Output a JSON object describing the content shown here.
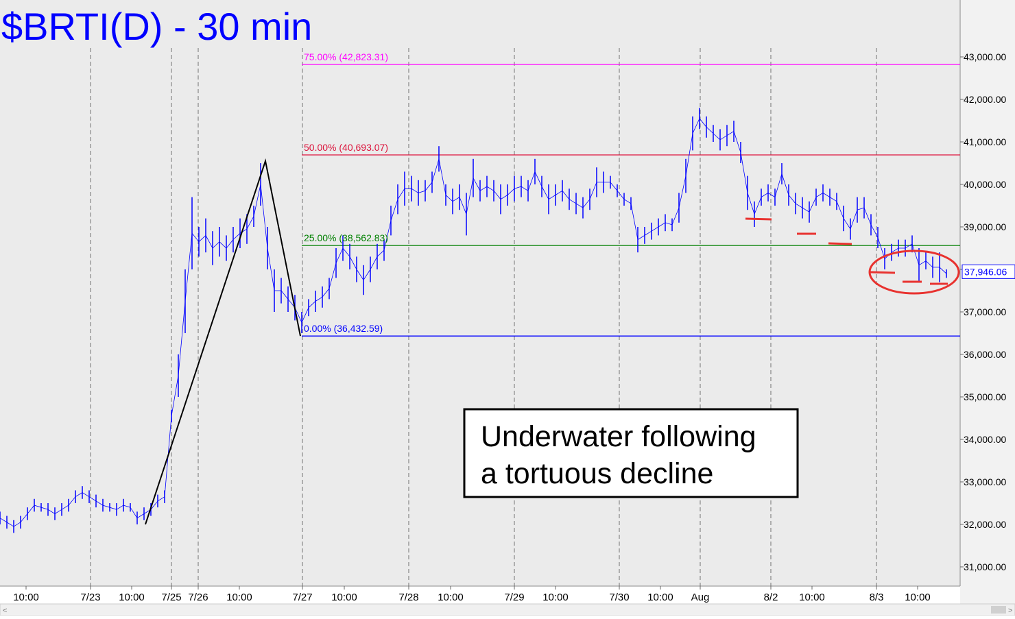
{
  "chart_data": {
    "type": "hilo",
    "title": "$BRTI(D) - 30 min",
    "xlim": [
      0,
      140
    ],
    "ylim": [
      30548,
      44339
    ],
    "xticks": [
      {
        "value": 3.8,
        "label": "10:00"
      },
      {
        "value": 13.2,
        "label": "7/23"
      },
      {
        "value": 19.2,
        "label": "10:00"
      },
      {
        "value": 25,
        "label": "7/25"
      },
      {
        "value": 28.9,
        "label": "7/26"
      },
      {
        "value": 34.9,
        "label": "10:00"
      },
      {
        "value": 44.1,
        "label": "7/27"
      },
      {
        "value": 50.2,
        "label": "10:00"
      },
      {
        "value": 59.6,
        "label": "7/28"
      },
      {
        "value": 65.7,
        "label": "10:00"
      },
      {
        "value": 75,
        "label": "7/29"
      },
      {
        "value": 81,
        "label": "10:00"
      },
      {
        "value": 90.3,
        "label": "7/30"
      },
      {
        "value": 96.3,
        "label": "10:00"
      },
      {
        "value": 102.1,
        "label": "Aug"
      },
      {
        "value": 112.4,
        "label": "8/2"
      },
      {
        "value": 118.4,
        "label": "10:00"
      },
      {
        "value": 127.8,
        "label": "8/3"
      },
      {
        "value": 133.8,
        "label": "10:00"
      }
    ],
    "vlines": [
      13.2,
      25,
      28.9,
      44.1,
      59.6,
      75,
      90.3,
      102.1,
      112.4,
      127.8
    ],
    "yticks": [
      {
        "value": 31000,
        "label": "31,000.00"
      },
      {
        "value": 32000,
        "label": "32,000.00"
      },
      {
        "value": 33000,
        "label": "33,000.00"
      },
      {
        "value": 34000,
        "label": "34,000.00"
      },
      {
        "value": 35000,
        "label": "35,000.00"
      },
      {
        "value": 36000,
        "label": "36,000.00"
      },
      {
        "value": 37000,
        "label": "37,000.00"
      },
      {
        "value": 38000,
        "label": "38,000.00"
      },
      {
        "value": 39000,
        "label": "39,000.00"
      },
      {
        "value": 40000,
        "label": "40,000.00"
      },
      {
        "value": 41000,
        "label": "41,000.00"
      },
      {
        "value": 42000,
        "label": "42,000.00"
      },
      {
        "value": 43000,
        "label": "43,000.00"
      }
    ],
    "color": "#0000ff",
    "x": [
      0,
      1,
      2,
      3,
      4,
      5,
      6,
      7,
      8,
      9,
      10,
      11,
      12,
      13,
      14,
      15,
      16,
      17,
      18,
      19,
      20,
      21,
      22,
      23,
      24,
      25,
      26,
      27,
      28,
      29,
      30,
      31,
      32,
      33,
      34,
      35,
      36,
      37,
      38,
      39,
      40,
      41,
      42,
      43,
      44,
      45,
      46,
      47,
      48,
      49,
      50,
      51,
      52,
      53,
      54,
      55,
      56,
      57,
      58,
      59,
      60,
      61,
      62,
      63,
      64,
      65,
      66,
      67,
      68,
      69,
      70,
      71,
      72,
      73,
      74,
      75,
      76,
      77,
      78,
      79,
      80,
      81,
      82,
      83,
      84,
      85,
      86,
      87,
      88,
      89,
      90,
      91,
      92,
      93,
      94,
      95,
      96,
      97,
      98,
      99,
      100,
      101,
      102,
      103,
      104,
      105,
      106,
      107,
      108,
      109,
      110,
      111,
      112,
      113,
      114,
      115,
      116,
      117,
      118,
      119,
      120,
      121,
      122,
      123,
      124,
      125,
      126,
      127,
      128,
      129,
      130,
      131,
      132,
      133,
      134,
      135,
      136,
      137,
      138
    ],
    "high": [
      32300,
      32200,
      32100,
      32200,
      32400,
      32600,
      32500,
      32500,
      32400,
      32500,
      32600,
      32800,
      32900,
      32800,
      32700,
      32600,
      32500,
      32500,
      32600,
      32500,
      32300,
      32400,
      32500,
      32700,
      32800,
      34700,
      36000,
      38000,
      39700,
      39000,
      39200,
      38900,
      39000,
      38800,
      39000,
      39200,
      39300,
      39500,
      40500,
      39000,
      38000,
      37800,
      37600,
      37400,
      37000,
      37300,
      37500,
      37600,
      37800,
      38500,
      38800,
      38600,
      38300,
      38100,
      38300,
      38600,
      38700,
      39500,
      40000,
      40300,
      40200,
      40100,
      40100,
      40300,
      40900,
      40000,
      39900,
      40000,
      39800,
      40600,
      40100,
      40200,
      40100,
      40000,
      40000,
      40200,
      40200,
      40100,
      40600,
      40200,
      40000,
      40000,
      40100,
      39900,
      39800,
      39700,
      39900,
      40400,
      40300,
      40200,
      40000,
      39800,
      39700,
      39000,
      39000,
      39100,
      39200,
      39300,
      39200,
      39800,
      40600,
      41600,
      41800,
      41600,
      41400,
      41300,
      41400,
      41500,
      41000,
      40200,
      39600,
      39900,
      40000,
      39900,
      40500,
      40000,
      39800,
      39700,
      39600,
      39900,
      40000,
      39900,
      39800,
      39500,
      39200,
      39700,
      39700,
      39300,
      39000,
      38500,
      38600,
      38700,
      38700,
      38800,
      38500,
      38400,
      38300,
      38400,
      38000
    ],
    "low": [
      32000,
      31900,
      31800,
      31900,
      32100,
      32300,
      32300,
      32200,
      32100,
      32200,
      32300,
      32500,
      32600,
      32500,
      32400,
      32300,
      32300,
      32200,
      32300,
      32300,
      32000,
      32100,
      32200,
      32400,
      32500,
      34400,
      35000,
      36500,
      38000,
      38300,
      38400,
      38100,
      38300,
      38200,
      38400,
      38500,
      38600,
      39000,
      39500,
      38000,
      37000,
      37200,
      37000,
      36800,
      36500,
      36900,
      37000,
      37100,
      37300,
      37800,
      38200,
      38000,
      37700,
      37400,
      37700,
      38000,
      38200,
      38800,
      39300,
      39500,
      39600,
      39500,
      39600,
      39800,
      40300,
      39500,
      39300,
      39400,
      38800,
      39700,
      39600,
      39700,
      39600,
      39300,
      39500,
      39600,
      39700,
      39600,
      40000,
      39700,
      39300,
      39500,
      39600,
      39400,
      39300,
      39200,
      39400,
      39700,
      39800,
      39900,
      39700,
      39500,
      39400,
      38400,
      38600,
      38700,
      38800,
      38900,
      38900,
      39100,
      39800,
      40800,
      41300,
      41100,
      41000,
      40800,
      40900,
      41000,
      40500,
      39400,
      39000,
      39500,
      39600,
      39500,
      40000,
      39500,
      39300,
      39200,
      39100,
      39500,
      39600,
      39500,
      39400,
      38900,
      38700,
      39100,
      39200,
      38800,
      38500,
      38000,
      38200,
      38300,
      38300,
      38400,
      37700,
      38000,
      37800,
      37700,
      37800
    ],
    "levels": [
      {
        "label": "75.00% (42,823.31)",
        "value": 42823.31,
        "color": "#ff00ff"
      },
      {
        "label": "50.00% (40,693.07)",
        "value": 40693.07,
        "color": "#dc143c"
      },
      {
        "label": "25.00% (38,562.83)",
        "value": 38562.83,
        "color": "#008000"
      },
      {
        "label": "0.00% (36,432.59)",
        "value": 36432.59,
        "color": "#0000ff"
      }
    ],
    "levels_start": 44,
    "pattern": {
      "x": [
        21.2,
        38.7,
        43.8
      ],
      "y": [
        32000,
        40550,
        36432.59
      ]
    },
    "last_price": {
      "value": 37946.06,
      "label": "37,946.06"
    },
    "annotation": [
      "Underwater following",
      "a tortuous decline"
    ]
  }
}
